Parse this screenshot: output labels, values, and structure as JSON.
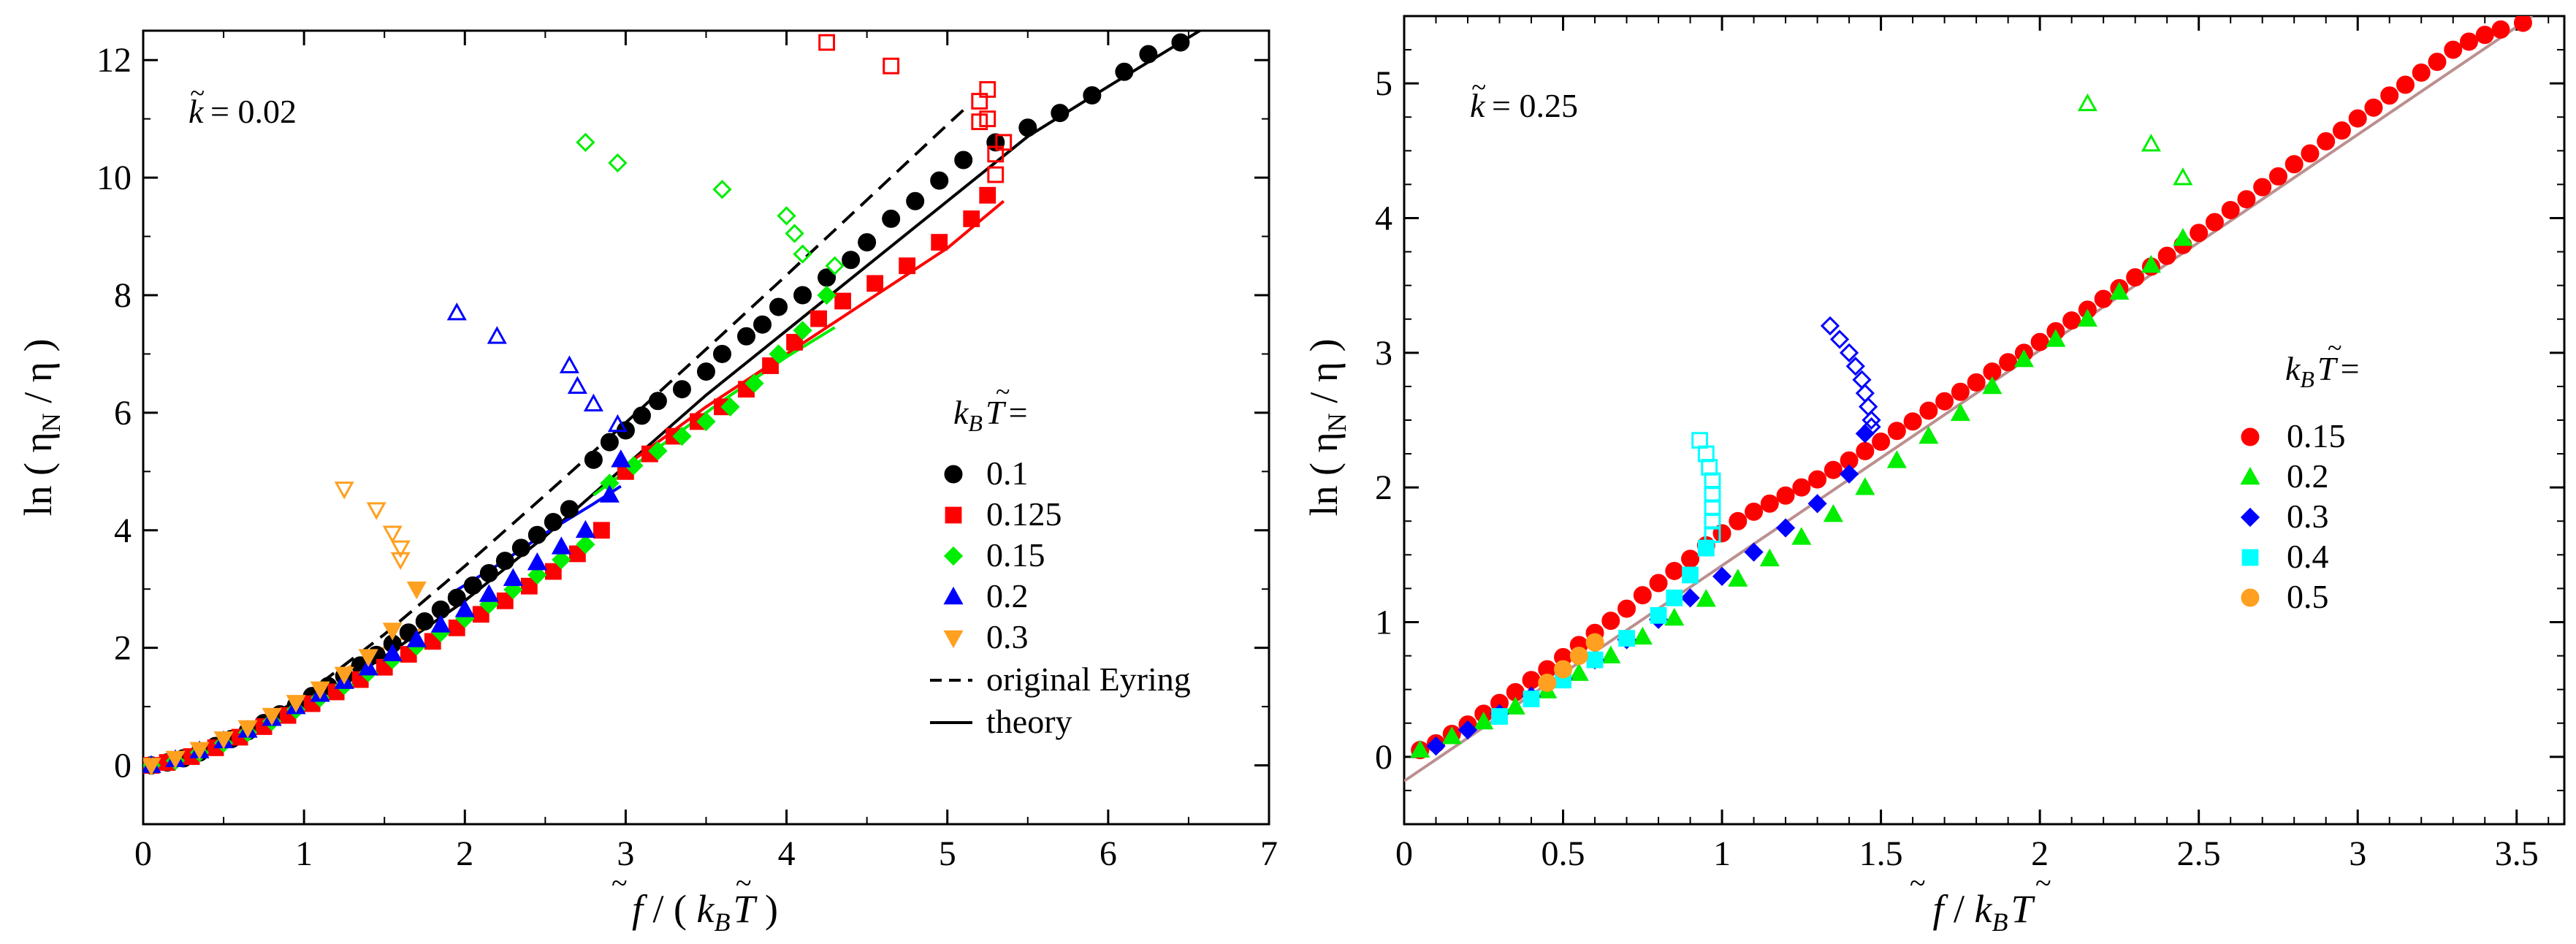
{
  "chart_data": [
    {
      "type": "scatter",
      "xlabel": "f̃ / ( k_B T̃ )",
      "ylabel": "ln ( η_N / η )",
      "xlim": [
        0,
        7
      ],
      "ylim": [
        -1,
        12.5
      ],
      "xticks": [
        "0",
        "1",
        "2",
        "3",
        "4",
        "5",
        "6",
        "7"
      ],
      "yticks": [
        "0",
        "2",
        "4",
        "6",
        "8",
        "10",
        "12"
      ],
      "grid": false,
      "annotation": {
        "k_label": "k̃",
        "k_value": "= 0.02"
      },
      "legend": {
        "placement": "right",
        "title": "k_B T̃ =",
        "entries": [
          "0.1",
          "0.125",
          "0.15",
          "0.2",
          "0.3"
        ],
        "eyring_label": "original Eyring",
        "theory_label": "theory"
      },
      "series": [
        {
          "name": "0.1",
          "color": "#000000",
          "marker": "circle",
          "x": [
            0.05,
            0.15,
            0.25,
            0.35,
            0.45,
            0.55,
            0.65,
            0.75,
            0.85,
            0.95,
            1.05,
            1.15,
            1.25,
            1.35,
            1.45,
            1.55,
            1.65,
            1.75,
            1.85,
            1.95,
            2.05,
            2.15,
            2.25,
            2.35,
            2.45,
            2.55,
            2.65,
            2.8,
            2.9,
            3.0,
            3.1,
            3.2,
            3.35,
            3.5,
            3.6,
            3.75,
            3.85,
            3.95,
            4.1,
            4.25,
            4.4,
            4.5,
            4.65,
            4.8,
            4.95,
            5.1,
            5.3,
            5.5,
            5.7,
            5.9,
            6.1,
            6.25,
            6.45
          ],
          "y": [
            0.0,
            0.05,
            0.12,
            0.22,
            0.33,
            0.45,
            0.58,
            0.72,
            0.87,
            1.02,
            1.18,
            1.35,
            1.52,
            1.7,
            1.88,
            2.07,
            2.26,
            2.45,
            2.65,
            2.85,
            3.06,
            3.27,
            3.48,
            3.7,
            3.92,
            4.14,
            4.36,
            5.2,
            5.5,
            5.7,
            5.95,
            6.2,
            6.4,
            6.7,
            7.0,
            7.3,
            7.5,
            7.8,
            8.0,
            8.3,
            8.6,
            8.9,
            9.3,
            9.6,
            9.95,
            10.3,
            10.6,
            10.85,
            11.1,
            11.4,
            11.8,
            12.1,
            12.3
          ],
          "unstable": {
            "x": [],
            "y": []
          }
        },
        {
          "name": "0.125",
          "color": "#ff0000",
          "marker": "square",
          "x": [
            0.05,
            0.15,
            0.3,
            0.45,
            0.6,
            0.75,
            0.9,
            1.05,
            1.2,
            1.35,
            1.5,
            1.65,
            1.8,
            1.95,
            2.1,
            2.25,
            2.4,
            2.55,
            2.7,
            2.85,
            3.0,
            3.15,
            3.3,
            3.45,
            3.6,
            3.75,
            3.9,
            4.05,
            4.2,
            4.35,
            4.55,
            4.75,
            4.95,
            5.15,
            5.25
          ],
          "y": [
            0.0,
            0.05,
            0.15,
            0.3,
            0.48,
            0.66,
            0.85,
            1.05,
            1.25,
            1.46,
            1.67,
            1.89,
            2.11,
            2.34,
            2.57,
            2.8,
            3.05,
            3.3,
            3.6,
            4.0,
            5.0,
            5.3,
            5.6,
            5.85,
            6.1,
            6.4,
            6.8,
            7.2,
            7.6,
            7.9,
            8.2,
            8.5,
            8.9,
            9.3,
            9.7
          ],
          "unstable": {
            "x": [
              4.25,
              4.65,
              5.2,
              5.25,
              5.3,
              5.3,
              5.35,
              5.2,
              5.25
            ],
            "y": [
              12.3,
              11.9,
              11.3,
              11.5,
              10.4,
              10.05,
              10.6,
              10.95,
              11.0
            ]
          }
        },
        {
          "name": "0.15",
          "color": "#00ee00",
          "marker": "diamond",
          "x": [
            0.05,
            0.2,
            0.35,
            0.5,
            0.65,
            0.8,
            0.95,
            1.1,
            1.25,
            1.4,
            1.55,
            1.7,
            1.85,
            2.0,
            2.15,
            2.3,
            2.45,
            2.6,
            2.75,
            2.9,
            3.05,
            3.2,
            3.35,
            3.5,
            3.65,
            3.8,
            3.95,
            4.1,
            4.25
          ],
          "y": [
            0.0,
            0.08,
            0.22,
            0.38,
            0.56,
            0.75,
            0.95,
            1.15,
            1.36,
            1.58,
            1.8,
            2.03,
            2.26,
            2.5,
            2.74,
            2.99,
            3.24,
            3.5,
            3.76,
            4.8,
            5.1,
            5.35,
            5.6,
            5.85,
            6.1,
            6.5,
            7.0,
            7.4,
            8.0
          ],
          "unstable": {
            "x": [
              2.75,
              2.95,
              3.6,
              4.0,
              4.05,
              4.1,
              4.3
            ],
            "y": [
              10.6,
              10.25,
              9.8,
              9.35,
              9.05,
              8.7,
              8.5
            ]
          }
        },
        {
          "name": "0.2",
          "color": "#0000ff",
          "marker": "triangle-up",
          "x": [
            0.05,
            0.2,
            0.35,
            0.5,
            0.65,
            0.8,
            0.95,
            1.1,
            1.25,
            1.4,
            1.55,
            1.7,
            1.85,
            2.0,
            2.15,
            2.3,
            2.45,
            2.6,
            2.75,
            2.9,
            2.97
          ],
          "y": [
            0.0,
            0.1,
            0.25,
            0.42,
            0.6,
            0.8,
            1.0,
            1.21,
            1.43,
            1.66,
            1.9,
            2.14,
            2.39,
            2.65,
            2.91,
            3.18,
            3.45,
            3.72,
            4.0,
            4.6,
            5.2
          ],
          "unstable": {
            "x": [
              1.95,
              2.2,
              2.65,
              2.7,
              2.8,
              2.95
            ],
            "y": [
              7.7,
              7.3,
              6.8,
              6.45,
              6.15,
              5.8
            ]
          }
        },
        {
          "name": "0.3",
          "color": "#ffa020",
          "marker": "triangle-down",
          "x": [
            0.05,
            0.2,
            0.35,
            0.5,
            0.65,
            0.8,
            0.95,
            1.1,
            1.25,
            1.4,
            1.55,
            1.7
          ],
          "y": [
            0.0,
            0.12,
            0.27,
            0.45,
            0.64,
            0.85,
            1.07,
            1.3,
            1.55,
            1.85,
            2.3,
            3.0
          ],
          "unstable": {
            "x": [
              1.25,
              1.45,
              1.55,
              1.6,
              1.6
            ],
            "y": [
              4.7,
              4.35,
              3.95,
              3.7,
              3.5
            ]
          }
        }
      ],
      "lines": [
        {
          "name": "original Eyring",
          "color": "#000000",
          "dash": true,
          "x": [
            0,
            0.5,
            1.0,
            1.5,
            2.0,
            2.5,
            3.0,
            3.5,
            4.0,
            4.5,
            5.0,
            5.1
          ],
          "y": [
            0.0,
            0.35,
            1.18,
            2.23,
            3.39,
            4.6,
            5.83,
            7.08,
            8.34,
            9.62,
            10.9,
            11.15
          ]
        },
        {
          "name": "theory 0.1",
          "color": "#000000",
          "dash": false,
          "x": [
            0,
            0.5,
            1.0,
            1.5,
            2.0,
            2.5,
            3.0,
            3.5,
            4.0,
            4.5,
            5.0,
            5.5,
            6.0,
            6.6
          ],
          "y": [
            0.0,
            0.3,
            1.0,
            1.85,
            2.8,
            3.9,
            5.1,
            6.3,
            7.4,
            8.5,
            9.6,
            10.7,
            11.55,
            12.55
          ]
        },
        {
          "name": "theory 0.125",
          "color": "#ff0000",
          "dash": false,
          "x": [
            3.0,
            3.5,
            4.0,
            4.5,
            5.0,
            5.35
          ],
          "y": [
            5.1,
            6.1,
            7.0,
            7.9,
            8.8,
            9.6
          ]
        },
        {
          "name": "theory 0.15",
          "color": "#00ee00",
          "dash": false,
          "x": [
            2.8,
            3.2,
            3.6,
            4.0,
            4.3
          ],
          "y": [
            4.6,
            5.4,
            6.2,
            6.95,
            7.45
          ]
        },
        {
          "name": "theory 0.2",
          "color": "#0000ff",
          "dash": false,
          "x": [
            1.9,
            2.2,
            2.5,
            2.8,
            2.97
          ],
          "y": [
            2.9,
            3.4,
            3.95,
            4.45,
            4.75
          ]
        },
        {
          "name": "theory 0.3",
          "color": "#ffa020",
          "dash": false,
          "x": [
            1.2,
            1.4,
            1.6,
            1.75
          ],
          "y": [
            1.55,
            1.85,
            2.15,
            2.35
          ]
        }
      ]
    },
    {
      "type": "scatter",
      "xlabel": "f̃ / k_B T̃",
      "ylabel": "ln ( η_N / η )",
      "xlim": [
        0,
        3.65
      ],
      "ylim": [
        -0.5,
        5.5
      ],
      "xticks": [
        "0",
        "0.5",
        "1",
        "1.5",
        "2",
        "2.5",
        "3",
        "3.5"
      ],
      "yticks": [
        "0",
        "1",
        "2",
        "3",
        "4",
        "5"
      ],
      "grid": false,
      "annotation": {
        "k_label": "k̃",
        "k_value": "= 0.25"
      },
      "legend": {
        "placement": "right",
        "title": "k_B T̃ =",
        "entries": [
          "0.15",
          "0.2",
          "0.3",
          "0.4",
          "0.5"
        ]
      },
      "series": [
        {
          "name": "0.15",
          "color": "#ff0000",
          "marker": "circle",
          "x": [
            0.05,
            0.1,
            0.15,
            0.2,
            0.25,
            0.3,
            0.35,
            0.4,
            0.45,
            0.5,
            0.55,
            0.6,
            0.65,
            0.7,
            0.75,
            0.8,
            0.85,
            0.9,
            0.95,
            1.0,
            1.05,
            1.1,
            1.15,
            1.2,
            1.25,
            1.3,
            1.35,
            1.4,
            1.45,
            1.5,
            1.55,
            1.6,
            1.65,
            1.7,
            1.75,
            1.8,
            1.85,
            1.9,
            1.95,
            2.0,
            2.05,
            2.1,
            2.15,
            2.2,
            2.25,
            2.3,
            2.35,
            2.4,
            2.45,
            2.5,
            2.55,
            2.6,
            2.65,
            2.7,
            2.75,
            2.8,
            2.85,
            2.9,
            2.95,
            3.0,
            3.05,
            3.1,
            3.15,
            3.2,
            3.25,
            3.3,
            3.35,
            3.4,
            3.45,
            3.52
          ],
          "y": [
            0.05,
            0.1,
            0.17,
            0.24,
            0.32,
            0.4,
            0.48,
            0.57,
            0.65,
            0.74,
            0.83,
            0.92,
            1.01,
            1.1,
            1.2,
            1.29,
            1.38,
            1.47,
            1.57,
            1.66,
            1.75,
            1.82,
            1.88,
            1.94,
            2.0,
            2.06,
            2.13,
            2.2,
            2.27,
            2.34,
            2.42,
            2.49,
            2.57,
            2.64,
            2.71,
            2.78,
            2.86,
            2.93,
            3.0,
            3.08,
            3.16,
            3.24,
            3.32,
            3.4,
            3.48,
            3.56,
            3.64,
            3.72,
            3.8,
            3.89,
            3.97,
            4.06,
            4.14,
            4.23,
            4.31,
            4.4,
            4.48,
            4.57,
            4.65,
            4.74,
            4.82,
            4.91,
            4.99,
            5.08,
            5.16,
            5.25,
            5.31,
            5.36,
            5.4,
            5.45
          ],
          "unstable": {
            "x": [],
            "y": []
          }
        },
        {
          "name": "0.2",
          "color": "#00ee00",
          "marker": "triangle-up",
          "x": [
            0.05,
            0.15,
            0.25,
            0.35,
            0.45,
            0.55,
            0.65,
            0.75,
            0.85,
            0.95,
            1.05,
            1.15,
            1.25,
            1.35,
            1.45,
            1.55,
            1.65,
            1.75,
            1.85,
            1.95,
            2.05,
            2.15,
            2.25,
            2.35,
            2.45
          ],
          "y": [
            0.05,
            0.15,
            0.26,
            0.37,
            0.49,
            0.62,
            0.75,
            0.89,
            1.03,
            1.17,
            1.32,
            1.47,
            1.63,
            1.8,
            2.0,
            2.2,
            2.38,
            2.55,
            2.75,
            2.95,
            3.1,
            3.25,
            3.45,
            3.65,
            3.85
          ],
          "unstable": {
            "x": [
              2.15,
              2.35,
              2.45
            ],
            "y": [
              4.85,
              4.55,
              4.3
            ]
          }
        },
        {
          "name": "0.3",
          "color": "#0000ff",
          "marker": "diamond",
          "x": [
            0.1,
            0.2,
            0.3,
            0.4,
            0.5,
            0.6,
            0.7,
            0.8,
            0.9,
            1.0,
            1.1,
            1.2,
            1.3,
            1.4,
            1.45
          ],
          "y": [
            0.08,
            0.2,
            0.32,
            0.45,
            0.58,
            0.72,
            0.87,
            1.02,
            1.18,
            1.34,
            1.52,
            1.7,
            1.88,
            2.1,
            2.4
          ],
          "unstable": {
            "x": [
              1.34,
              1.37,
              1.4,
              1.42,
              1.44,
              1.45,
              1.46,
              1.47,
              1.47
            ],
            "y": [
              3.2,
              3.1,
              3.0,
              2.9,
              2.8,
              2.7,
              2.6,
              2.5,
              2.45
            ]
          }
        },
        {
          "name": "0.4",
          "color": "#00ffff",
          "marker": "square",
          "x": [
            0.3,
            0.4,
            0.5,
            0.6,
            0.7,
            0.8,
            0.85,
            0.9,
            0.95
          ],
          "y": [
            0.3,
            0.43,
            0.57,
            0.72,
            0.88,
            1.05,
            1.18,
            1.35,
            1.55
          ],
          "unstable": {
            "x": [
              0.93,
              0.95,
              0.96,
              0.97,
              0.97,
              0.97,
              0.97,
              0.97
            ],
            "y": [
              2.35,
              2.25,
              2.15,
              2.05,
              1.95,
              1.85,
              1.75,
              1.65
            ]
          }
        },
        {
          "name": "0.5",
          "color": "#ffa020",
          "marker": "circle",
          "x": [
            0.45,
            0.5,
            0.55,
            0.6
          ],
          "y": [
            0.55,
            0.65,
            0.75,
            0.85
          ],
          "unstable": {
            "x": [],
            "y": []
          }
        }
      ],
      "lines": [
        {
          "name": "theory",
          "color": "#bc8f8f",
          "dash": false,
          "x": [
            0,
            3.55
          ],
          "y": [
            -0.18,
            5.5
          ]
        }
      ]
    }
  ]
}
